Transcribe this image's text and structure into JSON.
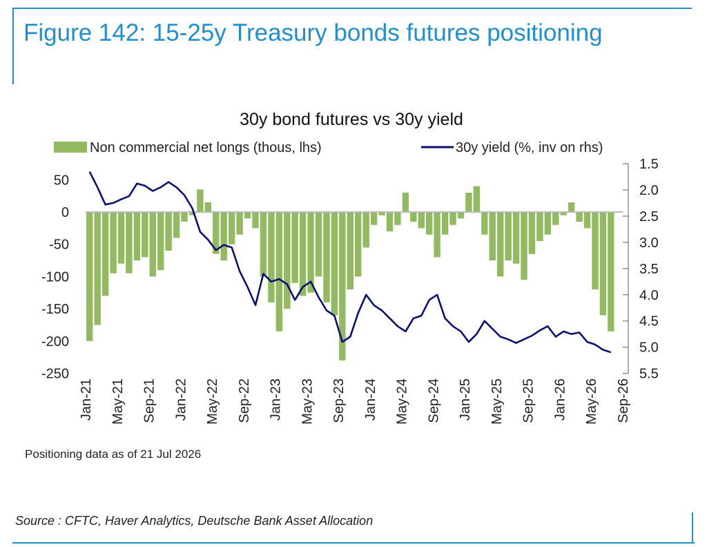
{
  "figure": {
    "title": "Figure 142: 15-25y Treasury bonds futures positioning",
    "note": "Positioning data as of 21 Jul 2026",
    "source": "Source : CFTC, Haver Analytics, Deutsche Bank Asset Allocation",
    "accent_color": "#1f8fd1"
  },
  "chart_data": {
    "type": "bar+line",
    "title": "30y bond futures vs 30y yield",
    "legend_position": "top",
    "grid": false,
    "x_tick_labels": [
      "Jan-21",
      "May-21",
      "Sep-21",
      "Jan-22",
      "May-22",
      "Sep-22",
      "Jan-23",
      "May-23",
      "Sep-23",
      "Jan-24",
      "May-24",
      "Sep-24",
      "Jan-25",
      "May-25",
      "Sep-25",
      "Jan-26",
      "May-26",
      "Sep-26"
    ],
    "xlim": [
      "2021-01",
      "2026-09"
    ],
    "y_left": {
      "ticks": [
        "50",
        "0",
        "-50",
        "-100",
        "-150",
        "-200",
        "-250"
      ],
      "ylim": [
        -250,
        60
      ]
    },
    "y_right": {
      "ticks": [
        "1.5",
        "2.0",
        "2.5",
        "3.0",
        "3.5",
        "4.0",
        "4.5",
        "5.0",
        "5.5"
      ],
      "ylim": [
        1.5,
        5.5
      ],
      "inverted": true
    },
    "months": [
      "2021-01",
      "2021-02",
      "2021-03",
      "2021-04",
      "2021-05",
      "2021-06",
      "2021-07",
      "2021-08",
      "2021-09",
      "2021-10",
      "2021-11",
      "2021-12",
      "2022-01",
      "2022-02",
      "2022-03",
      "2022-04",
      "2022-05",
      "2022-06",
      "2022-07",
      "2022-08",
      "2022-09",
      "2022-10",
      "2022-11",
      "2022-12",
      "2023-01",
      "2023-02",
      "2023-03",
      "2023-04",
      "2023-05",
      "2023-06",
      "2023-07",
      "2023-08",
      "2023-09",
      "2023-10",
      "2023-11",
      "2023-12",
      "2024-01",
      "2024-02",
      "2024-03",
      "2024-04",
      "2024-05",
      "2024-06",
      "2024-07",
      "2024-08",
      "2024-09",
      "2024-10",
      "2024-11",
      "2024-12",
      "2025-01",
      "2025-02",
      "2025-03",
      "2025-04",
      "2025-05",
      "2025-06",
      "2025-07",
      "2025-08",
      "2025-09",
      "2025-10",
      "2025-11",
      "2025-12",
      "2026-01",
      "2026-02",
      "2026-03",
      "2026-04",
      "2026-05",
      "2026-06",
      "2026-07"
    ],
    "series": [
      {
        "name": "Non commercial net longs (thous, lhs)",
        "kind": "bar",
        "axis": "left",
        "color": "#93b961",
        "values": [
          -200,
          -175,
          -130,
          -95,
          -80,
          -95,
          -75,
          -70,
          -100,
          -90,
          -60,
          -40,
          -15,
          -5,
          35,
          15,
          -65,
          -75,
          -50,
          -35,
          -10,
          -25,
          -100,
          -140,
          -185,
          -150,
          -110,
          -130,
          -125,
          -100,
          -140,
          -160,
          -230,
          -120,
          -100,
          -55,
          -20,
          -5,
          -30,
          -20,
          30,
          -15,
          -25,
          -35,
          -70,
          -35,
          -20,
          -10,
          30,
          40,
          -35,
          -75,
          -100,
          -75,
          -80,
          -105,
          -65,
          -45,
          -35,
          -20,
          -5,
          15,
          -15,
          -25,
          -120,
          -160,
          -185
        ]
      },
      {
        "name": "30y yield (%, inv on rhs)",
        "kind": "line",
        "axis": "right",
        "color": "#0a1172",
        "values": [
          1.65,
          1.95,
          2.28,
          2.25,
          2.18,
          2.12,
          1.88,
          1.92,
          2.02,
          1.95,
          1.85,
          1.95,
          2.1,
          2.35,
          2.8,
          2.95,
          3.15,
          3.05,
          3.1,
          3.55,
          3.85,
          4.2,
          3.6,
          3.75,
          3.7,
          3.8,
          4.1,
          3.85,
          3.75,
          4.05,
          4.3,
          4.4,
          4.9,
          4.8,
          4.35,
          4.0,
          4.2,
          4.3,
          4.45,
          4.6,
          4.7,
          4.45,
          4.4,
          4.1,
          4.0,
          4.45,
          4.6,
          4.7,
          4.9,
          4.75,
          4.5,
          4.65,
          4.8,
          4.85,
          4.92,
          4.85,
          4.78,
          4.68,
          4.6,
          4.8,
          4.7,
          4.75,
          4.72,
          4.9,
          4.95,
          5.05,
          5.1
        ]
      }
    ]
  }
}
